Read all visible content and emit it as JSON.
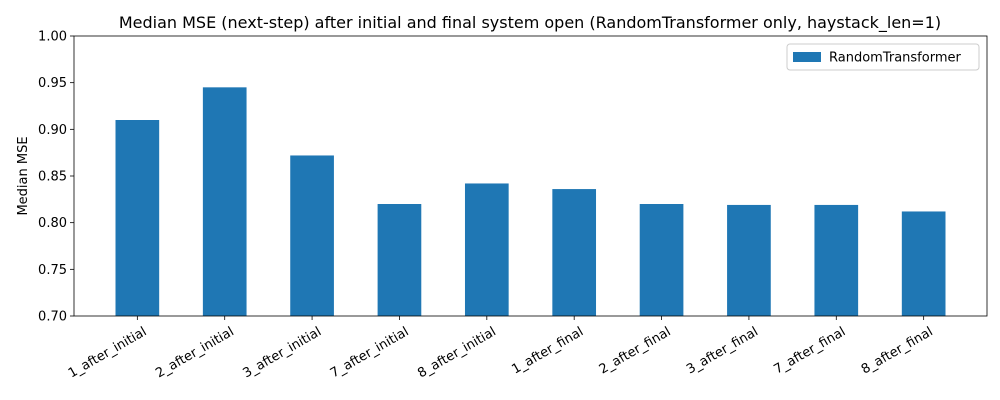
{
  "chart_data": {
    "type": "bar",
    "title": "Median MSE (next-step) after initial and final system open (RandomTransformer only, haystack_len=1)",
    "xlabel": "",
    "ylabel": "Median MSE",
    "categories": [
      "1_after_initial",
      "2_after_initial",
      "3_after_initial",
      "7_after_initial",
      "8_after_initial",
      "1_after_final",
      "2_after_final",
      "3_after_final",
      "7_after_final",
      "8_after_final"
    ],
    "series": [
      {
        "name": "RandomTransformer",
        "color": "#1f77b4",
        "values": [
          0.91,
          0.945,
          0.872,
          0.82,
          0.842,
          0.836,
          0.82,
          0.819,
          0.819,
          0.812
        ]
      }
    ],
    "ylim": [
      0.7,
      1.0
    ],
    "yticks": [
      "0.70",
      "0.75",
      "0.80",
      "0.85",
      "0.90",
      "0.95",
      "1.00"
    ],
    "grid": false,
    "legend_position": "top-right"
  }
}
